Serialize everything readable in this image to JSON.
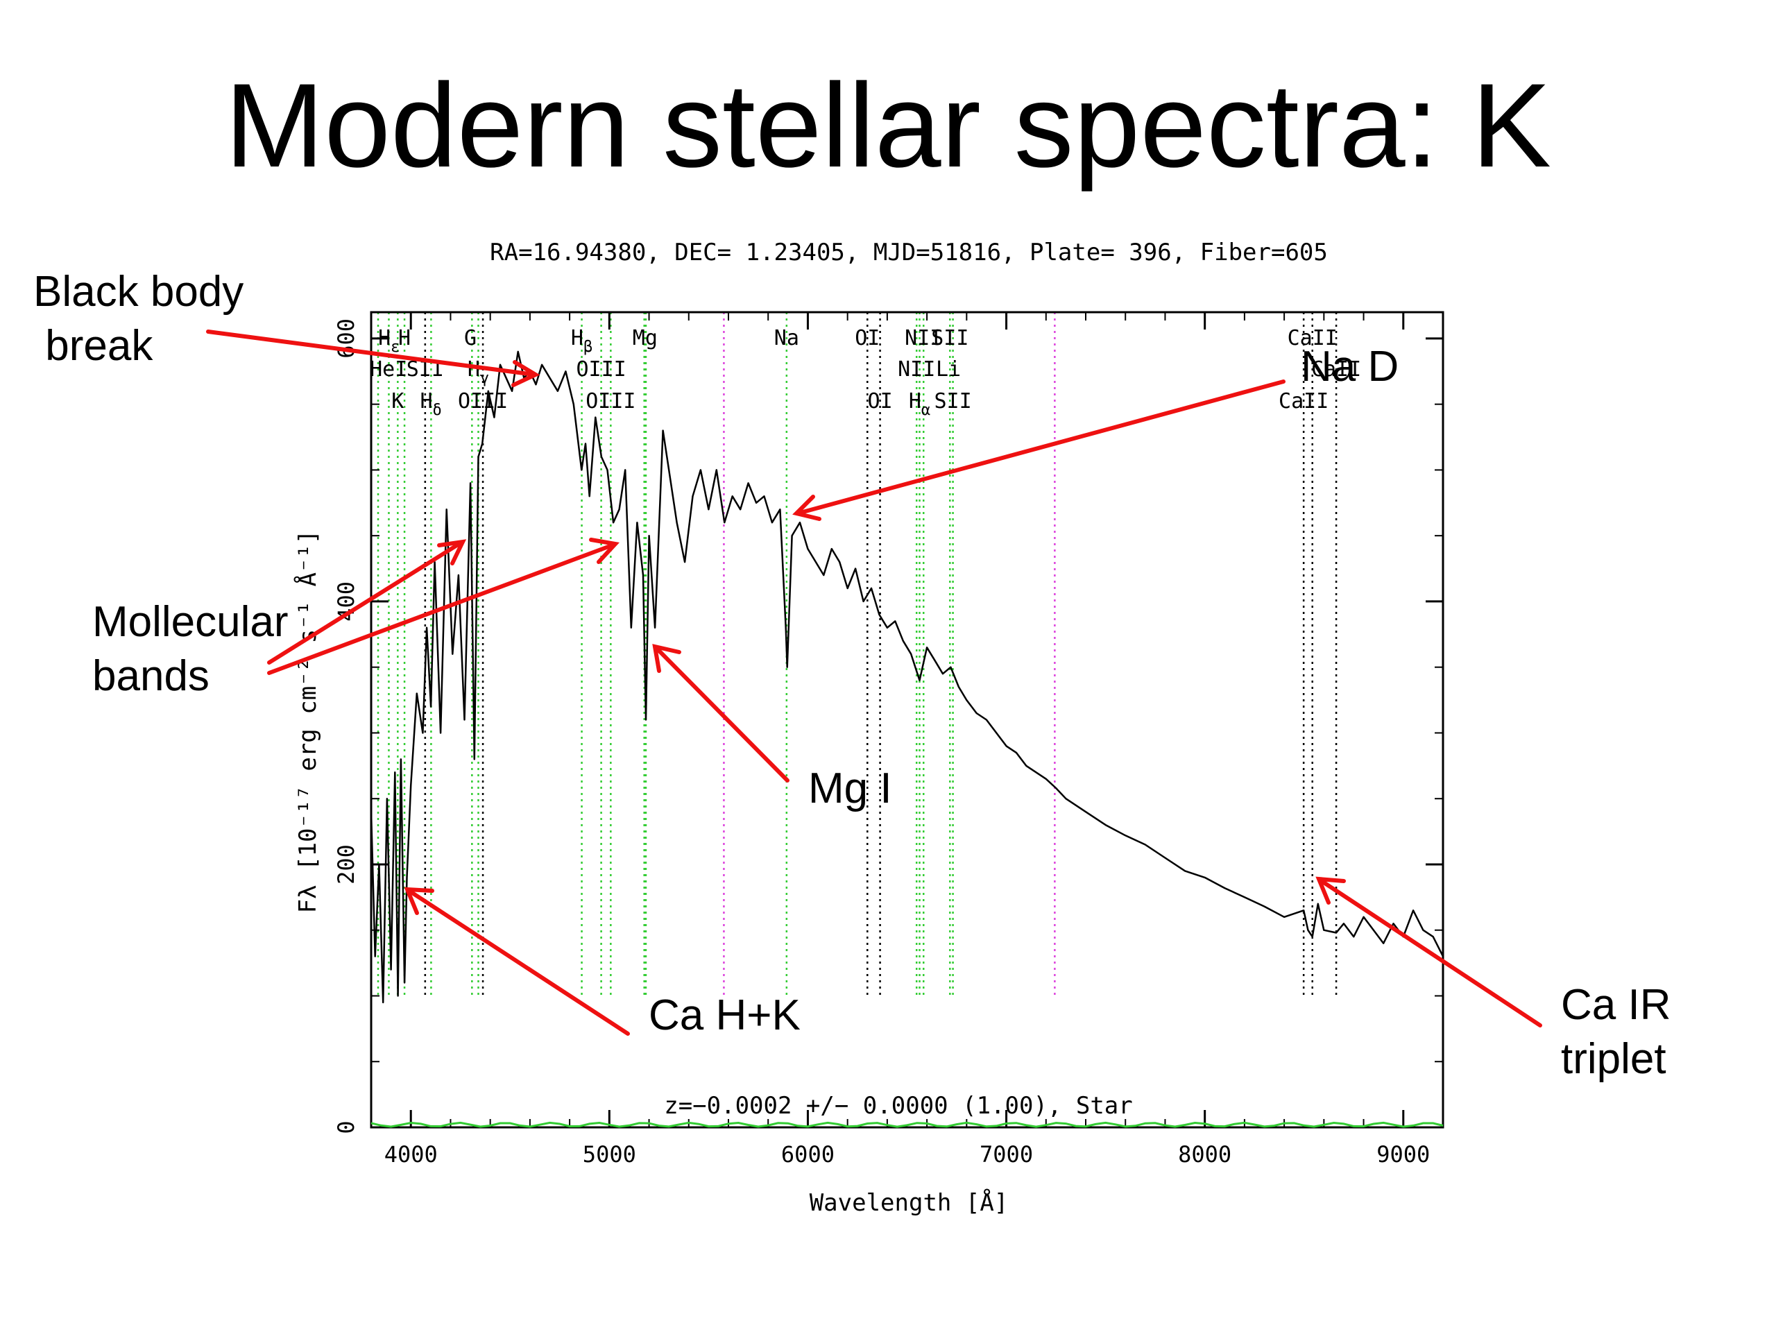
{
  "slide": {
    "title": "Modern stellar spectra: K"
  },
  "chart_data": {
    "type": "line",
    "title": "RA=16.94380, DEC= 1.23405, MJD=51816, Plate= 396, Fiber=605",
    "xlabel": "Wavelength [Å]",
    "ylabel": "Fλ [10⁻¹⁷ erg cm⁻² s⁻¹ Å⁻¹]",
    "xlim": [
      3800,
      9200
    ],
    "ylim": [
      0,
      620
    ],
    "x_ticks": [
      4000,
      5000,
      6000,
      7000,
      8000,
      9000
    ],
    "y_ticks": [
      0,
      200,
      400,
      600
    ],
    "redshift_label": "z=−0.0002 +/− 0.0000 (1.00), Star",
    "series": [
      {
        "x": [
          3800,
          3820,
          3840,
          3860,
          3880,
          3900,
          3920,
          3935,
          3950,
          3968,
          3980,
          4000,
          4030,
          4060,
          4080,
          4101,
          4120,
          4150,
          4180,
          4210,
          4240,
          4270,
          4300,
          4320,
          4340,
          4360,
          4390,
          4420,
          4450,
          4480,
          4510,
          4540,
          4570,
          4600,
          4630,
          4660,
          4700,
          4740,
          4780,
          4820,
          4860,
          4880,
          4900,
          4930,
          4960,
          4990,
          5020,
          5050,
          5080,
          5110,
          5140,
          5170,
          5184,
          5200,
          5230,
          5270,
          5300,
          5340,
          5380,
          5420,
          5460,
          5500,
          5540,
          5580,
          5620,
          5660,
          5700,
          5740,
          5780,
          5820,
          5860,
          5889,
          5896,
          5920,
          5960,
          6000,
          6040,
          6080,
          6120,
          6160,
          6200,
          6240,
          6280,
          6320,
          6360,
          6400,
          6440,
          6480,
          6520,
          6563,
          6600,
          6640,
          6680,
          6720,
          6760,
          6800,
          6850,
          6900,
          6950,
          7000,
          7050,
          7100,
          7150,
          7200,
          7250,
          7300,
          7400,
          7500,
          7600,
          7700,
          7800,
          7900,
          8000,
          8100,
          8200,
          8300,
          8400,
          8498,
          8520,
          8542,
          8570,
          8600,
          8662,
          8700,
          8750,
          8800,
          8850,
          8900,
          8950,
          9000,
          9050,
          9100,
          9150,
          9200
        ],
        "y": [
          240,
          130,
          200,
          95,
          250,
          120,
          270,
          100,
          280,
          110,
          190,
          260,
          330,
          300,
          380,
          320,
          430,
          300,
          470,
          360,
          420,
          310,
          490,
          280,
          510,
          520,
          560,
          540,
          580,
          570,
          560,
          590,
          570,
          575,
          565,
          580,
          570,
          560,
          575,
          550,
          500,
          520,
          480,
          540,
          510,
          500,
          460,
          470,
          500,
          380,
          460,
          420,
          310,
          450,
          380,
          530,
          500,
          460,
          430,
          480,
          500,
          470,
          500,
          460,
          480,
          470,
          490,
          475,
          480,
          460,
          470,
          380,
          350,
          450,
          460,
          440,
          430,
          420,
          440,
          430,
          410,
          425,
          400,
          410,
          390,
          380,
          385,
          370,
          360,
          340,
          365,
          355,
          345,
          350,
          335,
          325,
          315,
          310,
          300,
          290,
          285,
          275,
          270,
          265,
          258,
          250,
          240,
          230,
          222,
          215,
          205,
          195,
          190,
          182,
          175,
          168,
          160,
          165,
          150,
          145,
          170,
          150,
          148,
          155,
          145,
          160,
          150,
          140,
          155,
          145,
          165,
          150,
          145,
          130
        ]
      }
    ],
    "line_labels": [
      {
        "text": "H",
        "sub": "ε",
        "x": 3890,
        "row": 1
      },
      {
        "text": "H",
        "x": 3968,
        "row": 1
      },
      {
        "text": "G",
        "x": 4300,
        "row": 1
      },
      {
        "text": "H",
        "sub": "β",
        "x": 4861,
        "row": 1
      },
      {
        "text": "Mg",
        "x": 5180,
        "row": 1
      },
      {
        "text": "Na",
        "x": 5893,
        "row": 1
      },
      {
        "text": "OI",
        "x": 6300,
        "row": 1
      },
      {
        "text": "NII",
        "x": 6583,
        "row": 1
      },
      {
        "text": "SII",
        "x": 6716,
        "row": 1
      },
      {
        "text": "CaII",
        "x": 8542,
        "row": 1
      },
      {
        "text": "HeI",
        "x": 3888,
        "row": 2
      },
      {
        "text": "SII",
        "x": 4072,
        "row": 2
      },
      {
        "text": "H",
        "sub": "γ",
        "x": 4340,
        "row": 2
      },
      {
        "text": "OIII",
        "x": 4959,
        "row": 2
      },
      {
        "text": "NII",
        "x": 6548,
        "row": 2
      },
      {
        "text": "Li",
        "x": 6708,
        "row": 2
      },
      {
        "text": "CaII",
        "x": 8662,
        "row": 2
      },
      {
        "text": "K",
        "x": 3934,
        "row": 3
      },
      {
        "text": "H",
        "sub": "δ",
        "x": 4101,
        "row": 3
      },
      {
        "text": "OIII",
        "x": 4363,
        "row": 3
      },
      {
        "text": "OIII",
        "x": 5007,
        "row": 3
      },
      {
        "text": "OI",
        "x": 6364,
        "row": 3
      },
      {
        "text": "H",
        "sub": "α",
        "x": 6563,
        "row": 3
      },
      {
        "text": "SII",
        "x": 6731,
        "row": 3
      },
      {
        "text": "CaII",
        "x": 8498,
        "row": 3
      }
    ],
    "reference_lines": {
      "green": [
        3835,
        3889,
        3934,
        3968,
        4102,
        4308,
        4340,
        4861,
        4959,
        5007,
        5176,
        5184,
        5893,
        6548,
        6563,
        6583,
        6716,
        6731
      ],
      "black": [
        4072,
        4363,
        6300,
        6364,
        8498,
        8542,
        8662
      ],
      "magenta": [
        5577,
        7244
      ]
    },
    "colors": {
      "spectrum": "#000000",
      "green_lines": "#33cc33",
      "magenta_lines": "#dd44dd",
      "noise": "#33cc33",
      "arrows": "#ee1111"
    }
  },
  "annotations": [
    {
      "id": "black-body-break",
      "text": "Black body\n break"
    },
    {
      "id": "na-d",
      "text": "Na D"
    },
    {
      "id": "mollecular-bands",
      "text": "Mollecular\nbands"
    },
    {
      "id": "mg-i",
      "text": "Mg I"
    },
    {
      "id": "ca-hk",
      "text": "Ca H+K"
    },
    {
      "id": "ca-ir-triplet",
      "text": "Ca IR\ntriplet"
    }
  ]
}
